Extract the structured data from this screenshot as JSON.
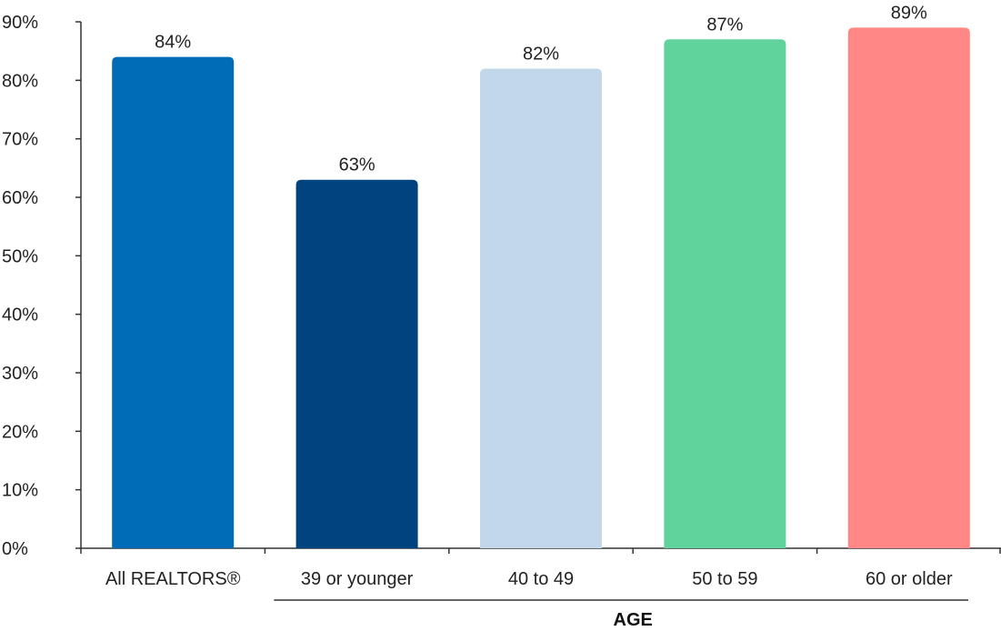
{
  "chart_data": {
    "type": "bar",
    "categories": [
      "All REALTORS®",
      "39 or younger",
      "40 to 49",
      "50 to 59",
      "60 or older"
    ],
    "values": [
      84,
      63,
      82,
      87,
      89
    ],
    "data_labels": [
      "84%",
      "63%",
      "82%",
      "87%",
      "89%"
    ],
    "colors": [
      "#006bb7",
      "#00437f",
      "#c2d8ea",
      "#5fd39b",
      "#ff8785"
    ],
    "ylim": [
      0,
      90
    ],
    "yticks": [
      0,
      10,
      20,
      30,
      40,
      50,
      60,
      70,
      80,
      90
    ],
    "ytick_labels": [
      "0%",
      "10%",
      "20%",
      "30%",
      "40%",
      "50%",
      "60%",
      "70%",
      "80%",
      "90%"
    ],
    "group_label": "AGE",
    "grid": false
  }
}
